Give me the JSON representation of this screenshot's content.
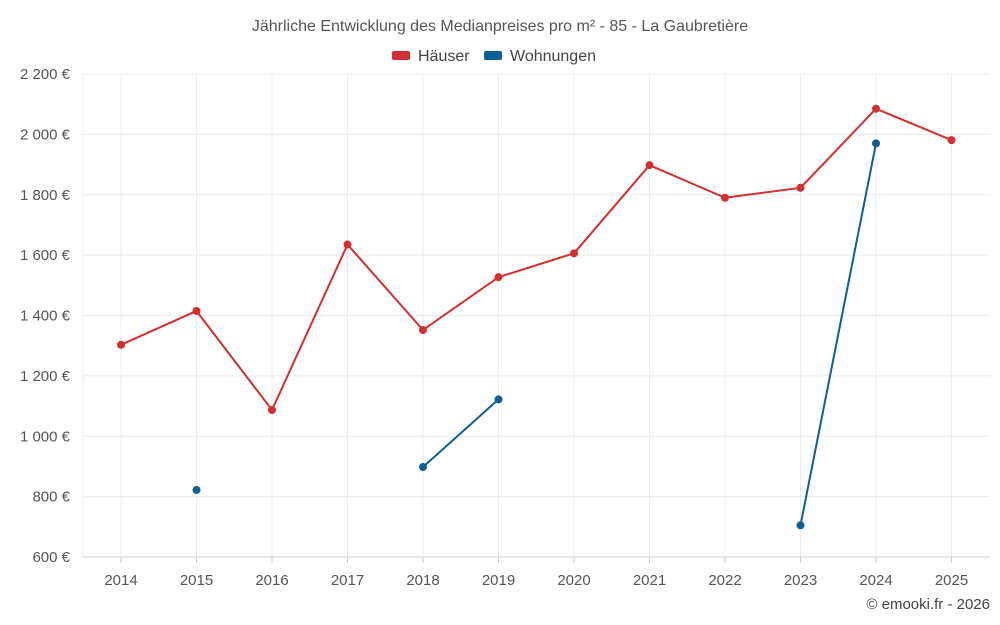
{
  "chart_data": {
    "type": "line",
    "title": "Jährliche Entwicklung des Medianpreises pro m² - 85 - La Gaubretière",
    "xlabel": "",
    "ylabel": "",
    "categories": [
      "2014",
      "2015",
      "2016",
      "2017",
      "2018",
      "2019",
      "2020",
      "2021",
      "2022",
      "2023",
      "2024",
      "2025"
    ],
    "ylim": [
      600,
      2200
    ],
    "yticks": [
      600,
      800,
      1000,
      1200,
      1400,
      1600,
      1800,
      2000,
      2200
    ],
    "ytick_labels": [
      "600 €",
      "800 €",
      "1 000 €",
      "1 200 €",
      "1 400 €",
      "1 600 €",
      "1 800 €",
      "2 000 €",
      "2 200 €"
    ],
    "grid": true,
    "legend_position": "top-center",
    "series": [
      {
        "name": "Häuser",
        "color": "#d32f2f",
        "values": [
          1303,
          1415,
          1087,
          1635,
          1352,
          1527,
          1606,
          1898,
          1790,
          1823,
          2085,
          1981
        ]
      },
      {
        "name": "Wohnungen",
        "color": "#0d6096",
        "values": [
          null,
          822,
          null,
          null,
          898,
          1122,
          null,
          null,
          null,
          705,
          1970,
          null
        ]
      }
    ],
    "credit": "© emooki.fr - 2026"
  }
}
